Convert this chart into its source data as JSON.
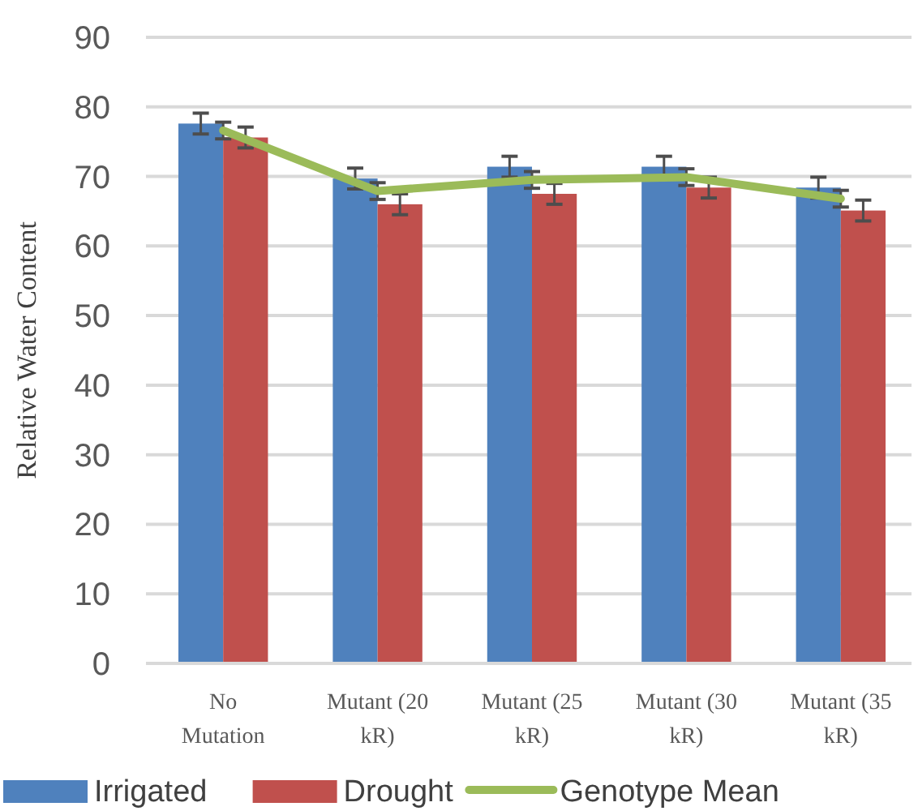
{
  "chart_data": {
    "type": "bar",
    "ylabel": "Relative  Water Content",
    "categories": [
      "No Mutation",
      "Mutant (20 kR)",
      "Mutant (25 kR)",
      "Mutant (30 kR)",
      "Mutant (35 kR)"
    ],
    "series": [
      {
        "name": "Irrigated",
        "color": "#4f81bd",
        "values": [
          77.6,
          69.7,
          71.4,
          71.4,
          68.4
        ],
        "errors": [
          1.5,
          1.5,
          1.5,
          1.5,
          1.5
        ]
      },
      {
        "name": "Drought",
        "color": "#c0504d",
        "values": [
          75.6,
          66.0,
          67.5,
          68.4,
          65.1
        ],
        "errors": [
          1.5,
          1.5,
          1.5,
          1.5,
          1.5
        ]
      },
      {
        "name": "Genotype Mean",
        "type": "line",
        "color": "#9bbb59",
        "values": [
          76.6,
          67.9,
          69.5,
          69.9,
          66.8
        ],
        "errors": [
          1.2,
          1.2,
          1.2,
          1.2,
          1.2
        ]
      }
    ],
    "ylim": [
      0,
      90
    ],
    "yticks": [
      0,
      10,
      20,
      30,
      40,
      50,
      60,
      70,
      80,
      90
    ],
    "grid": "y",
    "legend": "bottom",
    "marker": "none"
  }
}
